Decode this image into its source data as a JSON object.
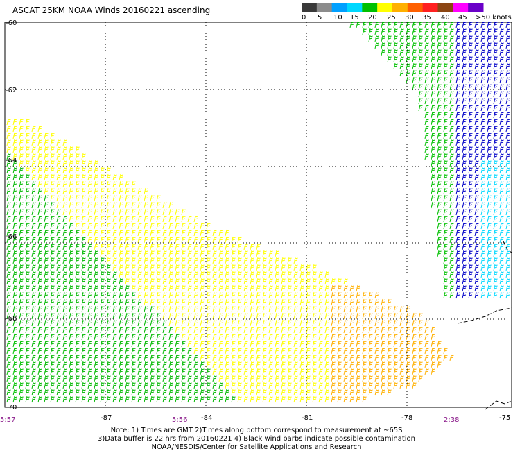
{
  "title": "ASCAT 25KM NOAA Winds 20160221 ascending",
  "legend": {
    "labels": [
      "0",
      "5",
      "10",
      "15",
      "20",
      "25",
      "30",
      "35",
      "40",
      "45",
      ">50 knots"
    ],
    "colors": [
      "#3a3a3a",
      "#8c8c8c",
      "#00a0ff",
      "#00d8ff",
      "#00c000",
      "#ffff00",
      "#ffb000",
      "#ff6000",
      "#ff2020",
      "#8b4513",
      "#ff00ff",
      "#6a00c8"
    ]
  },
  "lat_labels": [
    "-60",
    "-62",
    "-64",
    "-66",
    "-68",
    "-70"
  ],
  "lon_labels": [
    "-87",
    "-84",
    "-81",
    "-78",
    "-75"
  ],
  "times": [
    "5:57",
    "5:56",
    "2:38"
  ],
  "notes": [
    "Note: 1) Times are GMT 2)Times along bottom correspond to measurement at ~65S",
    "3)Data buffer is 22 hrs from 20160221 4) Black wind barbs indicate possible contamination",
    "NOAA/NESDIS/Center for Satellite Applications and Research"
  ]
}
